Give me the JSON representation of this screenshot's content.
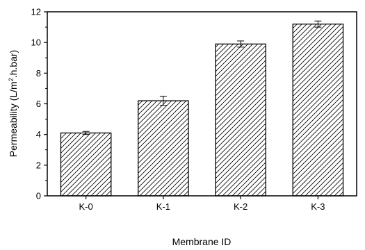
{
  "chart_data": {
    "type": "bar",
    "title": "",
    "xlabel": "Membrane ID",
    "ylabel": {
      "prefix": "Permeability (L/m",
      "superscript": "2",
      "suffix": ".h.bar)"
    },
    "categories": [
      "K-0",
      "K-1",
      "K-2",
      "K-3"
    ],
    "values": [
      4.1,
      6.2,
      9.9,
      11.2
    ],
    "errors": [
      0.1,
      0.3,
      0.2,
      0.2
    ],
    "ylim": [
      0,
      12
    ],
    "yticks": [
      0,
      2,
      4,
      6,
      8,
      10,
      12
    ],
    "ytick_labels": [
      "0",
      "2",
      "4",
      "6",
      "8",
      "10",
      "12"
    ],
    "bar_pattern": "diagonal-hatch",
    "grid": false,
    "legend": "none"
  }
}
